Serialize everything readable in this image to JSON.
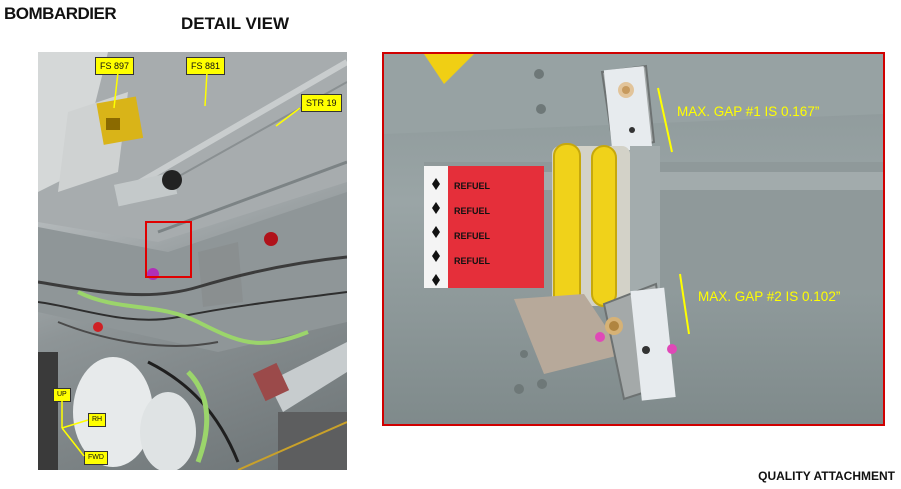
{
  "header": {
    "brand": "BOMBARDIER",
    "title": "DETAIL VIEW"
  },
  "left_photo": {
    "tags": {
      "fs897": "FS 897",
      "fs881": "FS 881",
      "str19": "STR 19",
      "up": "UP",
      "rh": "RH",
      "fwd": "FWD"
    }
  },
  "right_photo": {
    "gap1": "MAX. GAP #1 IS 0.167”",
    "gap2": "MAX. GAP #2 IS 0.102”",
    "pipe_text": "REFUEL"
  },
  "footer": {
    "label": "QUALITY ATTACHMENT"
  },
  "colors": {
    "tag_fill": "#ffff00",
    "highlight_border": "#e00000",
    "gap_text": "#ffff00"
  }
}
